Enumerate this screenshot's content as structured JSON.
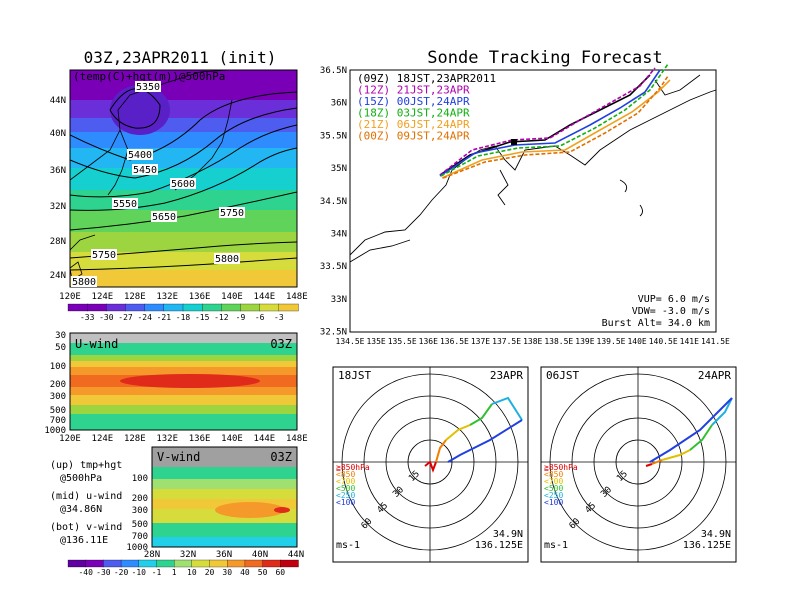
{
  "left_title": "03Z,23APR2011 (init)",
  "right_title": "Sonde Tracking Forecast",
  "map500": {
    "label": "(temp(C)+hgt(m))@500hPa",
    "lon_ticks": [
      "120E",
      "124E",
      "128E",
      "132E",
      "136E",
      "140E",
      "144E",
      "148E"
    ],
    "lat_ticks": [
      "44N",
      "40N",
      "36N",
      "32N",
      "28N",
      "24N"
    ],
    "contour_labels": [
      "5350",
      "5400",
      "5450",
      "5550",
      "5600",
      "5650",
      "5750",
      "5750",
      "5800",
      "5800"
    ],
    "colorbar_labels": [
      "-33",
      "-30",
      "-27",
      "-24",
      "-21",
      "-18",
      "-15",
      "-12",
      "-9",
      "-6",
      "-3"
    ],
    "colors": [
      "#7a00b8",
      "#6a2fd8",
      "#4f5cf0",
      "#2f8cff",
      "#22b6f2",
      "#16cfcf",
      "#2dd38f",
      "#5fd35a",
      "#9cd540",
      "#d6dc3c",
      "#f0c838"
    ]
  },
  "uwind": {
    "label": "U-wind",
    "time": "03Z",
    "p_ticks": [
      "30",
      "50",
      "100",
      "200",
      "300",
      "500",
      "700",
      "1000"
    ],
    "lon_ticks": [
      "120E",
      "124E",
      "128E",
      "132E",
      "136E",
      "140E",
      "144E",
      "148E"
    ]
  },
  "vwind": {
    "label": "V-wind",
    "time": "03Z",
    "p_ticks": [
      "100",
      "200",
      "300",
      "500",
      "700",
      "1000"
    ],
    "lat_ticks": [
      "28N",
      "32N",
      "36N",
      "40N",
      "44N"
    ]
  },
  "legend_notes": [
    [
      "(up) tmp+hgt",
      "@500hPa"
    ],
    [
      "(mid) u-wind",
      "@34.86N"
    ],
    [
      "(bot) v-wind",
      "@136.11E"
    ]
  ],
  "wind_colorbar": {
    "labels": [
      "-40",
      "-30",
      "-20",
      "-10",
      "-1",
      "1",
      "10",
      "20",
      "30",
      "40",
      "50",
      "60"
    ],
    "colors": [
      "#7a00b8",
      "#4f5cf0",
      "#2f8cff",
      "#22cfe8",
      "#2dd38f",
      "#a0e070",
      "#d6dc3c",
      "#f0c838",
      "#f59a2a",
      "#f06a20",
      "#e02a1a",
      "#c00010"
    ]
  },
  "track": {
    "legend": [
      {
        "text": "(09Z) 18JST,23APR2011",
        "color": "#000000"
      },
      {
        "text": "(12Z) 21JST,23APR",
        "color": "#b000b0"
      },
      {
        "text": "(15Z) 00JST,24APR",
        "color": "#2040e0"
      },
      {
        "text": "(18Z) 03JST,24APR",
        "color": "#10b010"
      },
      {
        "text": "(21Z) 06JST,24APR",
        "color": "#f0a020"
      },
      {
        "text": "(00Z) 09JST,24APR",
        "color": "#e07000"
      }
    ],
    "lon_ticks": [
      "134.5E",
      "135E",
      "135.5E",
      "136E",
      "136.5E",
      "137E",
      "137.5E",
      "138E",
      "138.5E",
      "139E",
      "139.5E",
      "140E",
      "140.5E",
      "141E",
      "141.5E"
    ],
    "lat_ticks": [
      "36.5N",
      "36N",
      "35.5N",
      "35N",
      "34.5N",
      "34N",
      "33.5N",
      "33N",
      "32.5N"
    ],
    "vup": "VUP=  6.0  m/s",
    "vdw": "VDW= -3.0  m/s",
    "burst": "Burst Alt= 34.0  km"
  },
  "hodo1": {
    "time": "18JST",
    "date": "23APR",
    "lat": "34.9N",
    "lon": "136.125E",
    "unit": "ms-1",
    "rings": [
      "15",
      "30",
      "45",
      "60"
    ]
  },
  "hodo2": {
    "time": "06JST",
    "date": "24APR",
    "lat": "34.9N",
    "lon": "136.125E",
    "unit": "ms-1",
    "rings": [
      "15",
      "30",
      "45",
      "60"
    ]
  },
  "hodo_legend": [
    {
      "text": "≧850hPa",
      "color": "#e00000"
    },
    {
      "text": "<850",
      "color": "#f08000"
    },
    {
      "text": "<700",
      "color": "#e0c000"
    },
    {
      "text": "<500",
      "color": "#30c030"
    },
    {
      "text": "<250",
      "color": "#20b0e0"
    },
    {
      "text": "<100",
      "color": "#2040e0"
    }
  ]
}
